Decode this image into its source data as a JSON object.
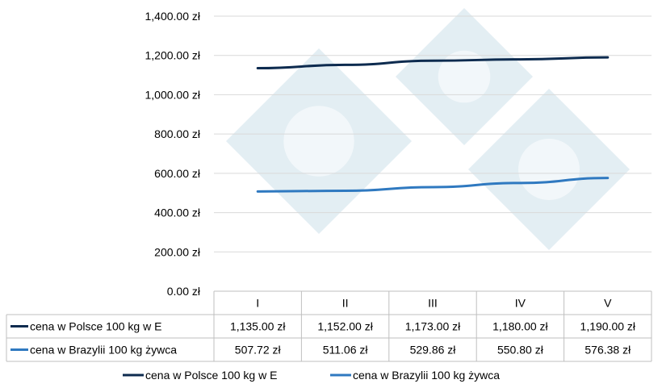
{
  "chart_data": {
    "type": "line",
    "title": "",
    "xlabel": "",
    "ylabel": "",
    "categories": [
      "I",
      "II",
      "III",
      "IV",
      "V"
    ],
    "ylim": [
      0,
      1400
    ],
    "y_ticks": [
      "0.00 zł",
      "200.00 zł",
      "400.00 zł",
      "600.00 zł",
      "800.00 zł",
      "1,000.00 zł",
      "1,200.00 zł",
      "1,400.00 zł"
    ],
    "grid": true,
    "legend_position": "bottom",
    "data_table": true,
    "series": [
      {
        "name": "cena w Polsce 100 kg w E",
        "color": "#0d2b4f",
        "values": [
          1135.0,
          1152.0,
          1173.0,
          1180.0,
          1190.0
        ],
        "labels": [
          "1,135.00 zł",
          "1,152.00 zł",
          "1,173.00 zł",
          "1,180.00 zł",
          "1,190.00 zł"
        ]
      },
      {
        "name": "cena w Brazylii 100 kg żywca",
        "color": "#2f79c0",
        "values": [
          507.72,
          511.06,
          529.86,
          550.8,
          576.38
        ],
        "labels": [
          "507.72 zł",
          "511.06 zł",
          "529.86 zł",
          "550.80 zł",
          "576.38 zł"
        ]
      }
    ],
    "watermark_color": "#e3eef3"
  }
}
